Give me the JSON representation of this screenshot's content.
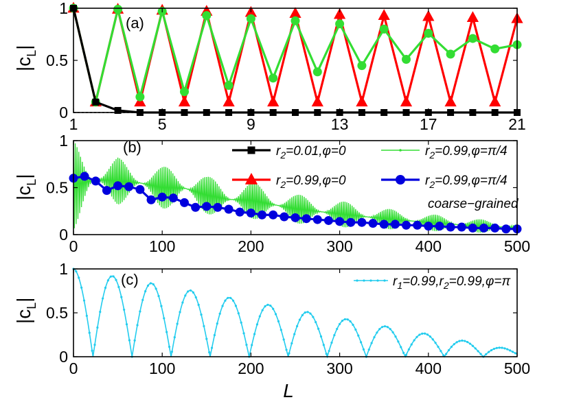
{
  "chart_data": [
    {
      "type": "line",
      "panel_label": "(a)",
      "ylabel": "|c",
      "ylabel_sub": "L",
      "ylabel_close": "|",
      "xlim": [
        1,
        21
      ],
      "ylim": [
        0,
        1
      ],
      "xticks": [
        1,
        5,
        9,
        13,
        17,
        21
      ],
      "yticks": [
        0,
        0.5,
        1
      ],
      "ytick_labels": [
        "0",
        "0.5",
        "1"
      ],
      "series": [
        {
          "name": "r2=0.99,φ=0",
          "color": "#ff0000",
          "marker": "triangle",
          "x": [
            1,
            2,
            3,
            4,
            5,
            6,
            7,
            8,
            9,
            10,
            11,
            12,
            13,
            14,
            15,
            16,
            17,
            18,
            19,
            20,
            21
          ],
          "values": [
            1,
            0.1,
            0.99,
            0.1,
            0.98,
            0.1,
            0.97,
            0.1,
            0.96,
            0.1,
            0.95,
            0.1,
            0.94,
            0.1,
            0.93,
            0.1,
            0.92,
            0.1,
            0.91,
            0.1,
            0.9
          ]
        },
        {
          "name": "r2=0.99,φ=π/4",
          "color": "#33dd33",
          "marker": "circle",
          "x": [
            1,
            2,
            3,
            4,
            5,
            6,
            7,
            8,
            9,
            10,
            11,
            12,
            13,
            14,
            15,
            16,
            17,
            18,
            19,
            20,
            21
          ],
          "values": [
            1,
            0.1,
            0.99,
            0.15,
            0.97,
            0.2,
            0.93,
            0.26,
            0.9,
            0.33,
            0.88,
            0.39,
            0.85,
            0.45,
            0.8,
            0.51,
            0.76,
            0.56,
            0.71,
            0.61,
            0.65
          ]
        },
        {
          "name": "r2=0.01,φ=0",
          "color": "#000000",
          "marker": "square",
          "x": [
            1,
            2,
            3,
            4,
            5,
            6,
            7,
            8,
            9,
            10,
            11,
            12,
            13,
            14,
            15,
            16,
            17,
            18,
            19,
            20,
            21
          ],
          "values": [
            1,
            0.1,
            0.02,
            0,
            0,
            0,
            0,
            0,
            0,
            0,
            0,
            0,
            0,
            0,
            0,
            0,
            0,
            0,
            0,
            0,
            0
          ]
        }
      ]
    },
    {
      "type": "line",
      "panel_label": "(b)",
      "ylabel": "|c",
      "ylabel_sub": "L",
      "ylabel_close": "|",
      "xlim": [
        0,
        500
      ],
      "ylim": [
        0,
        1
      ],
      "xticks": [
        0,
        100,
        200,
        300,
        400,
        500
      ],
      "yticks": [
        0,
        0.5,
        1
      ],
      "ytick_labels": [
        "0",
        "0.5",
        "1"
      ],
      "series": [
        {
          "name": "r2=0.99,φ=π/4",
          "color": "#33dd33",
          "marker": "dot",
          "generator": "oscillation",
          "period": 51,
          "envelope_x": [
            0,
            25,
            50,
            75,
            100,
            125,
            150,
            175,
            200,
            250,
            300,
            350,
            400,
            450,
            500
          ],
          "envelope_upper": [
            1.0,
            0.72,
            0.82,
            0.72,
            0.72,
            0.74,
            0.62,
            0.57,
            0.56,
            0.43,
            0.36,
            0.28,
            0.22,
            0.17,
            0.13
          ],
          "envelope_lower": [
            0.05,
            0.45,
            0.32,
            0.38,
            0.28,
            0.25,
            0.22,
            0.18,
            0.17,
            0.12,
            0.08,
            0.06,
            0.04,
            0.02,
            0.02
          ]
        },
        {
          "name": "r2=0.99,φ=π/4 coarse-grained",
          "color": "#0000dd",
          "marker": "circle",
          "x": [
            0,
            12.5,
            25,
            37.5,
            50,
            62.5,
            75,
            87.5,
            100,
            112.5,
            125,
            137.5,
            150,
            162.5,
            175,
            187.5,
            200,
            212.5,
            225,
            237.5,
            250,
            262.5,
            275,
            287.5,
            300,
            312.5,
            325,
            337.5,
            350,
            362.5,
            375,
            387.5,
            400,
            412.5,
            425,
            437.5,
            450,
            462.5,
            475,
            487.5,
            500
          ],
          "values": [
            0.6,
            0.62,
            0.57,
            0.47,
            0.52,
            0.51,
            0.48,
            0.37,
            0.4,
            0.39,
            0.34,
            0.29,
            0.3,
            0.29,
            0.27,
            0.24,
            0.23,
            0.21,
            0.21,
            0.19,
            0.18,
            0.17,
            0.16,
            0.15,
            0.14,
            0.13,
            0.13,
            0.12,
            0.11,
            0.11,
            0.1,
            0.1,
            0.09,
            0.09,
            0.08,
            0.08,
            0.07,
            0.07,
            0.07,
            0.06,
            0.06
          ]
        }
      ]
    },
    {
      "type": "line",
      "panel_label": "(c)",
      "ylabel": "|c",
      "ylabel_sub": "L",
      "ylabel_close": "|",
      "xlabel": "L",
      "xlim": [
        0,
        500
      ],
      "ylim": [
        0,
        1
      ],
      "xticks": [
        0,
        100,
        200,
        300,
        400,
        500
      ],
      "yticks": [
        0,
        0.5,
        1
      ],
      "ytick_labels": [
        "0",
        "0.5",
        "1"
      ],
      "series": [
        {
          "name": "r1=0.99,r2=0.99,φ=π",
          "color": "#22ccee",
          "marker": "dot",
          "generator": "rectified-cosine",
          "period": 44,
          "amplitude_start": 1.0,
          "amplitude_end": 0.07
        }
      ]
    }
  ],
  "legend_b": [
    {
      "prefix": "r",
      "sub": "2",
      "rest": "=0.01,φ=0",
      "color": "#000000",
      "marker": "square",
      "extra": ""
    },
    {
      "prefix": "r",
      "sub": "2",
      "rest": "=0.99,φ=π/4",
      "color": "#33dd33",
      "marker": "dot",
      "extra": ""
    },
    {
      "prefix": "r",
      "sub": "2",
      "rest": "=0.99,φ=0",
      "color": "#ff0000",
      "marker": "triangle",
      "extra": ""
    },
    {
      "prefix": "r",
      "sub": "2",
      "rest": "=0.99,φ=π/4",
      "color": "#0000dd",
      "marker": "circle",
      "extra": "coarse−grained"
    }
  ],
  "legend_c": {
    "p1": "r",
    "s1": "1",
    "m1": "=0.99,r",
    "s2": "2",
    "rest": "=0.99,φ=π",
    "color": "#22ccee"
  }
}
